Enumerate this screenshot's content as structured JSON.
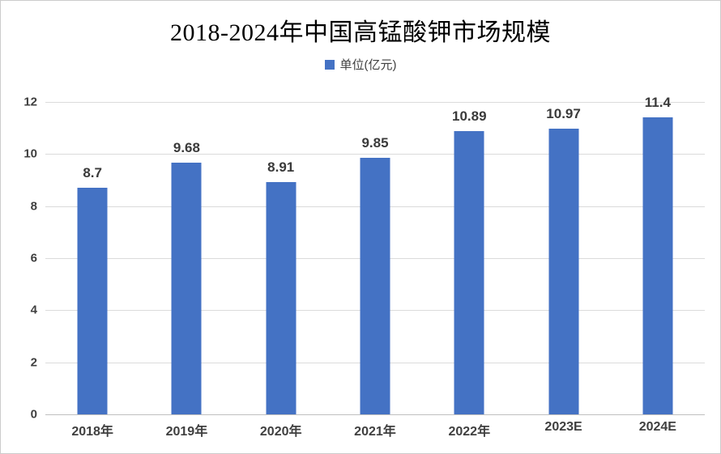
{
  "title": "2018-2024年中国高锰酸钾市场规模",
  "legend": {
    "label": "单位(亿元)",
    "swatch_color": "#4472C4"
  },
  "chart_data": {
    "type": "bar",
    "title": "2018-2024年中国高锰酸钾市场规模",
    "series_name": "单位(亿元)",
    "categories": [
      "2018年",
      "2019年",
      "2020年",
      "2021年",
      "2022年",
      "2023E",
      "2024E"
    ],
    "values": [
      8.7,
      9.68,
      8.91,
      9.85,
      10.89,
      10.97,
      11.4
    ],
    "value_labels": [
      "8.7",
      "9.68",
      "8.91",
      "9.85",
      "10.89",
      "10.97",
      "11.4"
    ],
    "xlabel": "",
    "ylabel": "",
    "ylim": [
      0,
      12
    ],
    "yticks": [
      0,
      2,
      4,
      6,
      8,
      10,
      12
    ],
    "grid": true,
    "legend_position": "top",
    "bar_color": "#4472C4"
  },
  "colors": {
    "bar": "#4472C4",
    "gridline": "#dbdbdb",
    "axis_line": "#bfbfbf",
    "label_text": "#3f3f3f",
    "title_text": "#000000",
    "frame_border": "#cccccc"
  }
}
